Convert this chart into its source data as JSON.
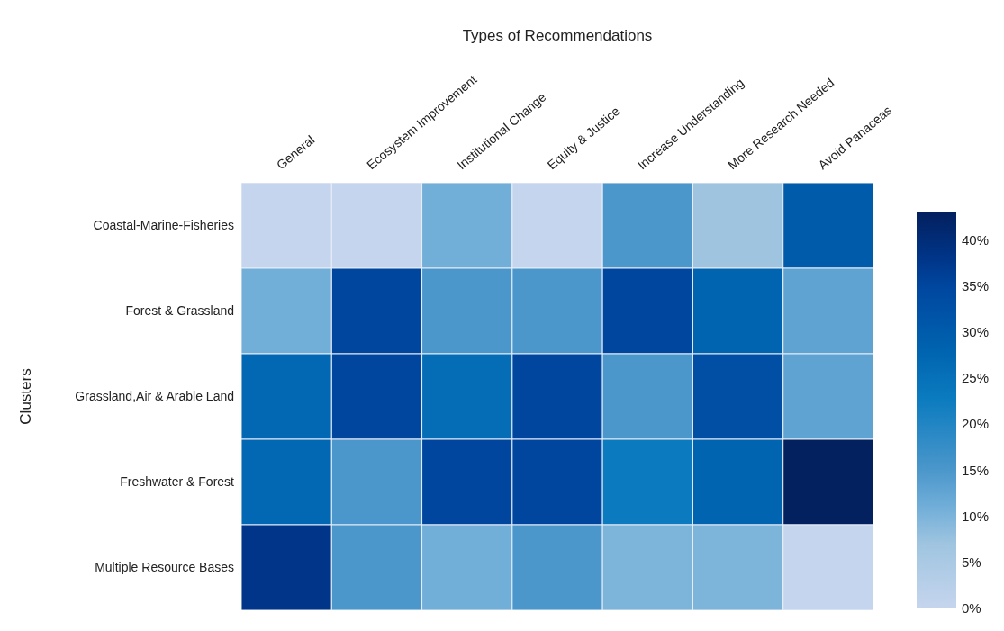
{
  "chart_data": {
    "type": "heatmap",
    "title": "Types of Recommendations",
    "ylabel": "Clusters",
    "categories": [
      "General",
      "Ecosystem Improvement",
      "Institutional Change",
      "Equity & Justice",
      "Increase Understanding",
      "More Research Needed",
      "Avoid Panaceas"
    ],
    "y_categories": [
      "Coastal-Marine-Fisheries",
      "Forest & Grassland",
      "Grassland,Air & Arable Land",
      "Freshwater & Forest",
      "Multiple Resource Bases"
    ],
    "cells": [
      [
        0,
        0,
        11,
        0,
        15,
        7,
        30
      ],
      [
        11,
        35,
        15,
        15,
        35,
        28,
        13
      ],
      [
        27,
        35,
        26,
        35,
        15,
        33,
        13
      ],
      [
        27,
        15,
        35,
        35,
        23,
        28,
        43
      ],
      [
        38,
        15,
        11,
        15,
        10,
        10,
        0
      ]
    ],
    "clim": [
      0,
      43
    ],
    "cticks": [
      {
        "value": 0,
        "label": "0%"
      },
      {
        "value": 5,
        "label": "5%"
      },
      {
        "value": 10,
        "label": "10%"
      },
      {
        "value": 15,
        "label": "15%"
      },
      {
        "value": 20,
        "label": "20%"
      },
      {
        "value": 25,
        "label": "25%"
      },
      {
        "value": 30,
        "label": "30%"
      },
      {
        "value": 35,
        "label": "35%"
      },
      {
        "value": 40,
        "label": "40%"
      }
    ]
  }
}
